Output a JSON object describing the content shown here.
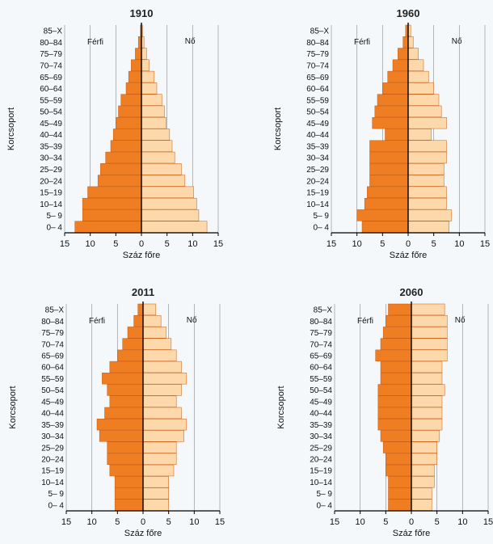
{
  "chart_data": [
    {
      "type": "bar",
      "title": "1910",
      "xlabel": "Száz főre",
      "ylabel": "Korcsoport",
      "xlim": [
        -15,
        15
      ],
      "x_ticks": [
        "15",
        "10",
        "5",
        "0",
        "5",
        "10",
        "15"
      ],
      "grid": true,
      "categories": [
        "0– 4",
        "5– 9",
        "10–14",
        "15–19",
        "20–24",
        "25–29",
        "30–34",
        "35–39",
        "40–44",
        "45–49",
        "50–54",
        "55–59",
        "60–64",
        "65–69",
        "70–74",
        "75–79",
        "80–84",
        "85–X"
      ],
      "series": [
        {
          "name": "Férfi",
          "values": [
            13.0,
            11.5,
            11.5,
            10.5,
            8.5,
            8.0,
            7.0,
            6.0,
            5.5,
            5.0,
            4.5,
            4.0,
            3.0,
            2.5,
            2.0,
            1.2,
            0.6,
            0.2
          ]
        },
        {
          "name": "Nő",
          "values": [
            12.8,
            11.2,
            10.8,
            10.2,
            8.5,
            7.8,
            6.5,
            6.0,
            5.5,
            4.8,
            4.5,
            4.0,
            3.0,
            2.5,
            1.5,
            1.0,
            0.5,
            0.2
          ]
        }
      ]
    },
    {
      "type": "bar",
      "title": "1960",
      "xlabel": "Száz főre",
      "ylabel": "Korcsoport",
      "xlim": [
        -15,
        15
      ],
      "x_ticks": [
        "15",
        "10",
        "5",
        "0",
        "5",
        "10",
        "15"
      ],
      "grid": true,
      "categories": [
        "0– 4",
        "5– 9",
        "10–14",
        "15–19",
        "20–24",
        "25–29",
        "30–34",
        "35–39",
        "40–44",
        "45–49",
        "50–54",
        "55–59",
        "60–64",
        "65–69",
        "70–74",
        "75–79",
        "80–84",
        "85–X"
      ],
      "series": [
        {
          "name": "Férfi",
          "values": [
            9.0,
            10.0,
            8.5,
            8.0,
            7.5,
            7.5,
            7.5,
            7.5,
            4.5,
            7.0,
            6.5,
            6.0,
            5.0,
            4.0,
            3.0,
            2.0,
            1.0,
            0.5
          ]
        },
        {
          "name": "Nő",
          "values": [
            8.0,
            8.5,
            7.5,
            7.5,
            7.0,
            7.0,
            7.5,
            7.5,
            4.5,
            7.5,
            6.5,
            6.0,
            5.0,
            4.0,
            3.0,
            2.0,
            1.0,
            0.5
          ]
        }
      ]
    },
    {
      "type": "bar",
      "title": "2011",
      "xlabel": "Száz főre",
      "ylabel": "Korcsoport",
      "xlim": [
        -15,
        15
      ],
      "x_ticks": [
        "15",
        "10",
        "5",
        "0",
        "5",
        "10",
        "15"
      ],
      "grid": true,
      "categories": [
        "0– 4",
        "5– 9",
        "10–14",
        "15–19",
        "20–24",
        "25–29",
        "30–34",
        "35–39",
        "40–44",
        "45–49",
        "50–54",
        "55–59",
        "60–64",
        "65–69",
        "70–74",
        "75–79",
        "80–84",
        "85–X"
      ],
      "series": [
        {
          "name": "Férfi",
          "values": [
            5.5,
            5.5,
            5.5,
            6.5,
            7.0,
            7.0,
            8.5,
            9.0,
            7.5,
            6.5,
            7.0,
            8.0,
            6.5,
            5.0,
            4.0,
            3.0,
            1.8,
            1.0
          ]
        },
        {
          "name": "Nő",
          "values": [
            5.0,
            5.0,
            5.0,
            6.0,
            6.5,
            6.5,
            8.0,
            8.5,
            7.5,
            6.5,
            7.5,
            8.5,
            7.5,
            6.5,
            5.5,
            4.5,
            3.5,
            2.5
          ]
        }
      ]
    },
    {
      "type": "bar",
      "title": "2060",
      "xlabel": "Száz főre",
      "ylabel": "Korcsoport",
      "xlim": [
        -15,
        15
      ],
      "x_ticks": [
        "15",
        "10",
        "5",
        "0",
        "5",
        "10",
        "15"
      ],
      "grid": true,
      "categories": [
        "0– 4",
        "5– 9",
        "10–14",
        "15–19",
        "20–24",
        "25–29",
        "30–34",
        "35–39",
        "40–44",
        "45–49",
        "50–54",
        "55–59",
        "60–64",
        "65–69",
        "70–74",
        "75–79",
        "80–84",
        "85–X"
      ],
      "series": [
        {
          "name": "Férfi",
          "values": [
            4.5,
            4.5,
            4.5,
            5.0,
            5.0,
            5.5,
            6.0,
            6.5,
            6.5,
            6.5,
            6.5,
            6.0,
            6.0,
            7.0,
            6.0,
            5.5,
            5.0,
            4.5
          ]
        },
        {
          "name": "Nő",
          "values": [
            4.0,
            4.0,
            4.5,
            4.5,
            5.0,
            5.0,
            5.5,
            6.0,
            6.0,
            6.0,
            6.5,
            6.0,
            6.0,
            7.0,
            7.0,
            7.0,
            7.0,
            6.5
          ]
        }
      ]
    }
  ],
  "colors": {
    "male": "#ef7d22",
    "female": "#fdd8aa",
    "bar_edge": "#c85a10",
    "axis": "#000000",
    "grid": "#9a9a9a",
    "background": "#f4f8fb"
  }
}
